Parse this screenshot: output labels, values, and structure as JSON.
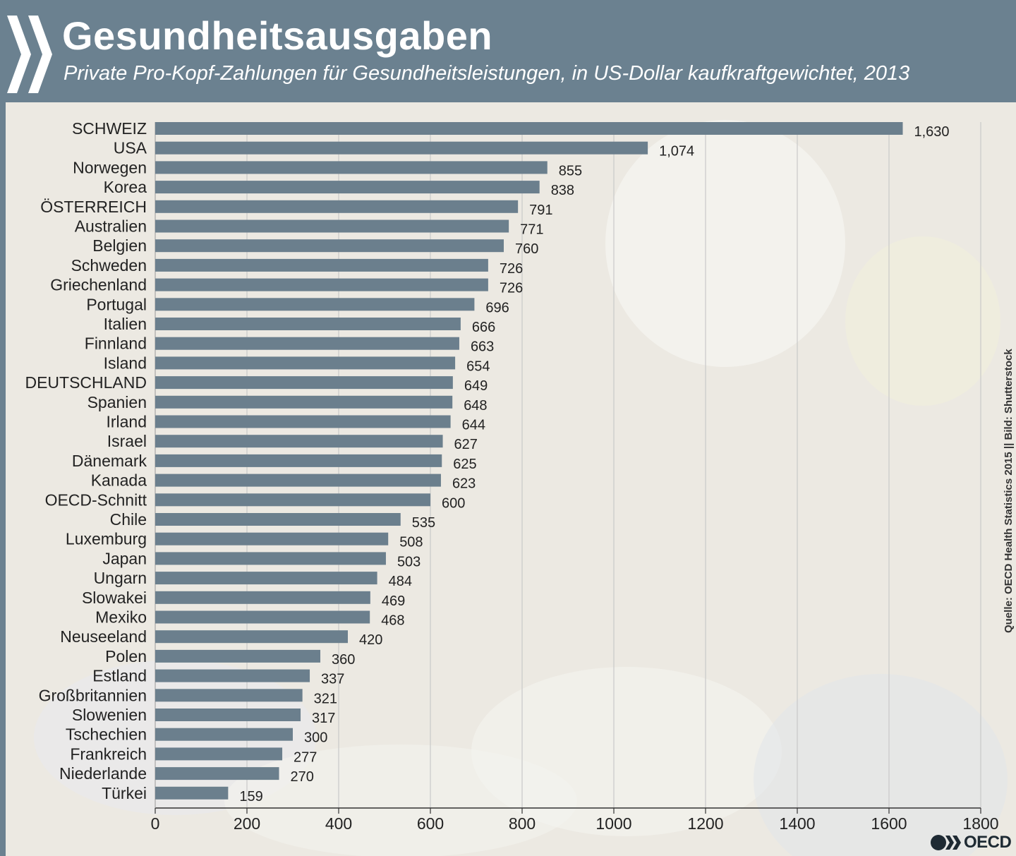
{
  "header": {
    "title": "Gesundheitsausgaben",
    "subtitle": "Private Pro-Kopf-Zahlungen für Gesundheitsleistungen, in US-Dollar kaufkraftgewichtet, 2013"
  },
  "source": "Quelle: OECD Health Statistics 2015 || Bild: Shutterstock",
  "logo": {
    "text": "OECD",
    "icon": "oecd-chevron-logo-icon"
  },
  "colors": {
    "header": "#6b8190",
    "bar": "#6b7f8d",
    "background": "#ece9e2"
  },
  "chart_data": {
    "type": "bar",
    "orientation": "horizontal",
    "categories": [
      "SCHWEIZ",
      "USA",
      "Norwegen",
      "Korea",
      "ÖSTERREICH",
      "Australien",
      "Belgien",
      "Schweden",
      "Griechenland",
      "Portugal",
      "Italien",
      "Finnland",
      "Island",
      "DEUTSCHLAND",
      "Spanien",
      "Irland",
      "Israel",
      "Dänemark",
      "Kanada",
      "OECD-Schnitt",
      "Chile",
      "Luxemburg",
      "Japan",
      "Ungarn",
      "Slowakei",
      "Mexiko",
      "Neuseeland",
      "Polen",
      "Estland",
      "Großbritannien",
      "Slowenien",
      "Tschechien",
      "Frankreich",
      "Niederlande",
      "Türkei"
    ],
    "values": [
      1630,
      1074,
      855,
      838,
      791,
      771,
      760,
      726,
      726,
      696,
      666,
      663,
      654,
      649,
      648,
      644,
      627,
      625,
      623,
      600,
      535,
      508,
      503,
      484,
      469,
      468,
      420,
      360,
      337,
      321,
      317,
      300,
      277,
      270,
      159
    ],
    "value_labels": [
      "1,630",
      "1,074",
      "855",
      "838",
      "791",
      "771",
      "760",
      "726",
      "726",
      "696",
      "666",
      "663",
      "654",
      "649",
      "648",
      "644",
      "627",
      "625",
      "623",
      "600",
      "535",
      "508",
      "503",
      "484",
      "469",
      "468",
      "420",
      "360",
      "337",
      "321",
      "317",
      "300",
      "277",
      "270",
      "159"
    ],
    "xlim": [
      0,
      1800
    ],
    "xticks": [
      0,
      200,
      400,
      600,
      800,
      1000,
      1200,
      1400,
      1600,
      1800
    ],
    "grid": true,
    "legend": false
  }
}
